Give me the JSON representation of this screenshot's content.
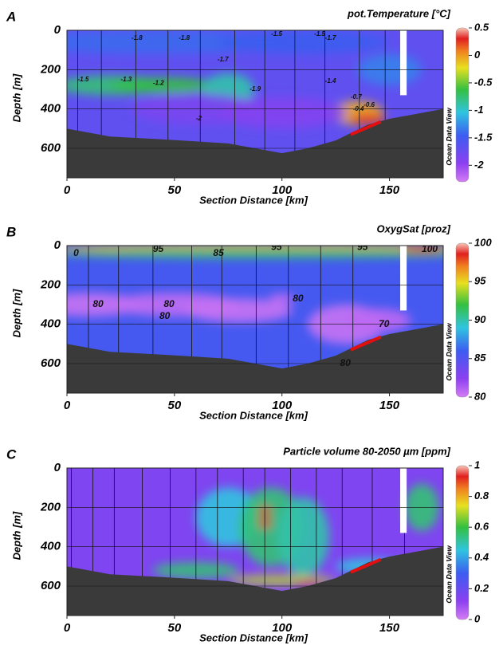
{
  "chart_data": [
    {
      "type": "heatmap",
      "panel_label": "A",
      "title": "pot.Temperature [°C]",
      "xlabel": "Section Distance [km]",
      "ylabel": "Depth [m]",
      "xlim": [
        0,
        175
      ],
      "xticks": [
        0,
        50,
        100,
        150
      ],
      "ylim": [
        0,
        750
      ],
      "y_inverted": true,
      "yticks": [
        0,
        200,
        400,
        600
      ],
      "clim": [
        -2.3,
        0.5
      ],
      "cticks": [
        0.5,
        0,
        -0.5,
        -1,
        -1.5,
        -2
      ],
      "colorbar_label": "Ocean Data View",
      "contour_labels": [
        -1.8,
        -1.8,
        -1.5,
        -1.5,
        -1.7,
        -1.7,
        -1.5,
        -1.3,
        -1.2,
        -1.9,
        -1.4,
        -2,
        -0.7,
        -0.6,
        -0.4
      ]
    },
    {
      "type": "heatmap",
      "panel_label": "B",
      "title": "OxygSat [proz]",
      "xlabel": "Section Distance [km]",
      "ylabel": "Depth [m]",
      "xlim": [
        0,
        175
      ],
      "xticks": [
        0,
        50,
        100,
        150
      ],
      "ylim": [
        0,
        750
      ],
      "y_inverted": true,
      "yticks": [
        0,
        200,
        400,
        600
      ],
      "clim": [
        80,
        100
      ],
      "cticks": [
        100,
        95,
        90,
        85,
        80
      ],
      "colorbar_label": "Ocean Data View",
      "contour_labels": [
        0,
        95,
        85,
        95,
        95,
        100,
        80,
        80,
        80,
        80,
        70,
        80
      ]
    },
    {
      "type": "heatmap",
      "panel_label": "C",
      "title": "Particle volume 80-2050 µm [ppm]",
      "xlabel": "Section Distance [km]",
      "ylabel": "Depth [m]",
      "xlim": [
        0,
        175
      ],
      "xticks": [
        0,
        50,
        100,
        150
      ],
      "ylim": [
        0,
        750
      ],
      "y_inverted": true,
      "yticks": [
        0,
        200,
        400,
        600
      ],
      "clim": [
        0,
        1
      ],
      "cticks": [
        1,
        0.8,
        0.6,
        0.4,
        0.2,
        0
      ],
      "colorbar_label": "Ocean Data View",
      "contour_labels": []
    }
  ]
}
